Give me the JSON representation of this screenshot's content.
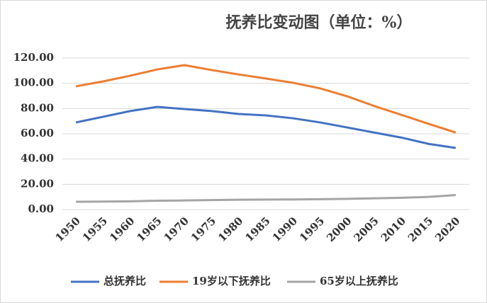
{
  "chart_data": {
    "type": "line",
    "title": "抚养比变动图（单位：%）",
    "categories": [
      "1950",
      "1955",
      "1960",
      "1965",
      "1970",
      "1975",
      "1980",
      "1985",
      "1990",
      "1995",
      "2000",
      "2005",
      "2010",
      "2015",
      "2020"
    ],
    "series": [
      {
        "name": "总抚养比",
        "color": "#4472c4",
        "values": [
          69,
          73.5,
          78,
          81.3,
          79.6,
          78,
          75.7,
          74.6,
          72.3,
          69,
          65,
          61,
          57,
          52,
          48.8
        ]
      },
      {
        "name": "19岁以下抚养比",
        "color": "#ed7d31",
        "values": [
          97.6,
          101.5,
          106,
          111,
          114.4,
          110.5,
          107,
          103.8,
          100.4,
          96,
          89.7,
          82,
          75,
          67.9,
          61
        ]
      },
      {
        "name": "65岁以上抚养比",
        "color": "#a5a5a5",
        "values": [
          6.2,
          6.3,
          6.5,
          7,
          7.2,
          7.5,
          7.8,
          7.9,
          8,
          8.2,
          8.5,
          8.9,
          9.3,
          10,
          11.5
        ]
      }
    ],
    "ylim": [
      0,
      120
    ],
    "yticks": [
      {
        "value": 0,
        "label": "0.00"
      },
      {
        "value": 20,
        "label": "20.00"
      },
      {
        "value": 40,
        "label": "40.00"
      },
      {
        "value": 60,
        "label": "60.00"
      },
      {
        "value": 80,
        "label": "80.00"
      },
      {
        "value": 100,
        "label": "100.00"
      },
      {
        "value": 120,
        "label": "120.00"
      }
    ],
    "grid": true,
    "legend": "bottom"
  }
}
